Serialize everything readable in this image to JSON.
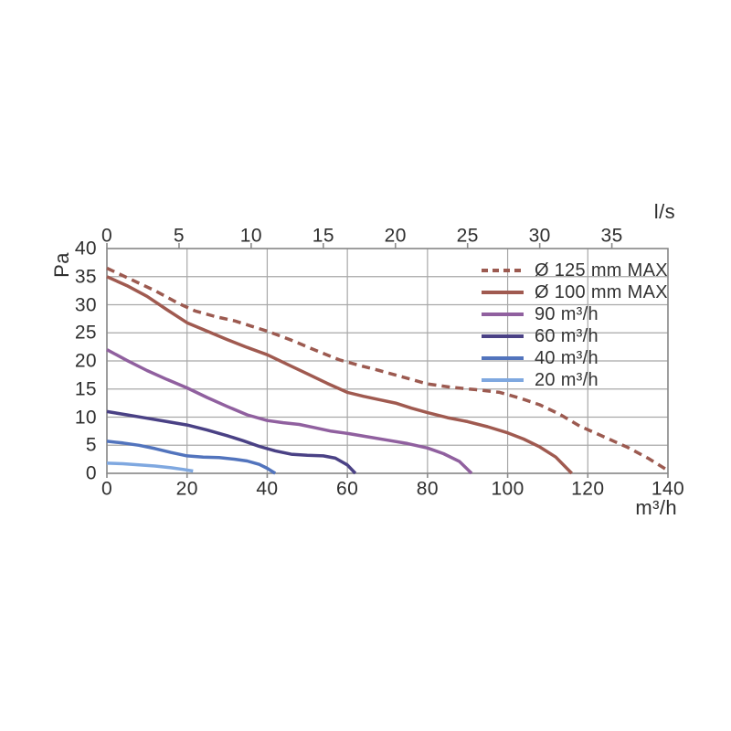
{
  "chart_data": {
    "type": "line",
    "title": "",
    "grid": true,
    "legend_position": "inside-top-right",
    "x_bottom": {
      "label": "m³/h",
      "ticks": [
        0,
        20,
        40,
        60,
        80,
        100,
        120,
        140
      ],
      "range": [
        0,
        140
      ]
    },
    "x_top": {
      "label": "l/s",
      "ticks": [
        0,
        5,
        10,
        15,
        20,
        25,
        30,
        35
      ],
      "range": [
        0,
        38.89
      ]
    },
    "y": {
      "label": "Pa",
      "ticks": [
        0,
        5,
        10,
        15,
        20,
        25,
        30,
        35,
        40
      ],
      "range": [
        0,
        40
      ]
    },
    "series": [
      {
        "name": "Ø 125 mm MAX",
        "style": "dashed",
        "color": "#9c5a50",
        "points": [
          [
            0,
            36.5
          ],
          [
            6,
            34.5
          ],
          [
            12,
            32.5
          ],
          [
            18,
            30.2
          ],
          [
            22,
            28.9
          ],
          [
            27,
            27.9
          ],
          [
            32,
            27.1
          ],
          [
            36,
            26.2
          ],
          [
            40,
            25.3
          ],
          [
            46,
            23.7
          ],
          [
            52,
            21.9
          ],
          [
            58,
            20.2
          ],
          [
            63,
            19.2
          ],
          [
            68,
            18.3
          ],
          [
            74,
            17.1
          ],
          [
            80,
            15.9
          ],
          [
            86,
            15.3
          ],
          [
            92,
            14.9
          ],
          [
            98,
            14.4
          ],
          [
            103,
            13.4
          ],
          [
            108,
            12.2
          ],
          [
            113,
            10.5
          ],
          [
            118,
            8.4
          ],
          [
            124,
            6.5
          ],
          [
            130,
            4.6
          ],
          [
            135,
            2.7
          ],
          [
            140,
            0.5
          ]
        ]
      },
      {
        "name": "Ø 100 mm MAX",
        "style": "solid",
        "color": "#a05a50",
        "points": [
          [
            0,
            35
          ],
          [
            5,
            33.4
          ],
          [
            10,
            31.5
          ],
          [
            15,
            29.1
          ],
          [
            20,
            26.8
          ],
          [
            25,
            25.3
          ],
          [
            30,
            23.8
          ],
          [
            35,
            22.4
          ],
          [
            40,
            21.1
          ],
          [
            45,
            19.4
          ],
          [
            50,
            17.7
          ],
          [
            55,
            16.0
          ],
          [
            60,
            14.4
          ],
          [
            64,
            13.7
          ],
          [
            68,
            13.1
          ],
          [
            72,
            12.5
          ],
          [
            76,
            11.6
          ],
          [
            80,
            10.8
          ],
          [
            85,
            9.9
          ],
          [
            90,
            9.2
          ],
          [
            95,
            8.3
          ],
          [
            100,
            7.2
          ],
          [
            104,
            6.1
          ],
          [
            108,
            4.7
          ],
          [
            112,
            2.9
          ],
          [
            116,
            0
          ]
        ]
      },
      {
        "name": "90 m³/h",
        "style": "solid",
        "color": "#90609f",
        "points": [
          [
            0,
            22
          ],
          [
            5,
            20.1
          ],
          [
            10,
            18.3
          ],
          [
            15,
            16.7
          ],
          [
            20,
            15.2
          ],
          [
            25,
            13.5
          ],
          [
            30,
            11.9
          ],
          [
            35,
            10.4
          ],
          [
            40,
            9.4
          ],
          [
            44,
            9.0
          ],
          [
            48,
            8.7
          ],
          [
            52,
            8.1
          ],
          [
            56,
            7.5
          ],
          [
            60,
            7.1
          ],
          [
            65,
            6.5
          ],
          [
            70,
            5.9
          ],
          [
            75,
            5.3
          ],
          [
            80,
            4.5
          ],
          [
            84,
            3.5
          ],
          [
            88,
            2.1
          ],
          [
            91,
            0
          ]
        ]
      },
      {
        "name": "60 m³/h",
        "style": "solid",
        "color": "#4a4185",
        "points": [
          [
            0,
            11
          ],
          [
            5,
            10.4
          ],
          [
            10,
            9.8
          ],
          [
            15,
            9.2
          ],
          [
            20,
            8.6
          ],
          [
            25,
            7.7
          ],
          [
            30,
            6.7
          ],
          [
            34,
            5.8
          ],
          [
            38,
            4.8
          ],
          [
            42,
            4.0
          ],
          [
            46,
            3.4
          ],
          [
            50,
            3.2
          ],
          [
            54,
            3.1
          ],
          [
            57,
            2.7
          ],
          [
            60,
            1.5
          ],
          [
            62,
            0
          ]
        ]
      },
      {
        "name": "40 m³/h",
        "style": "solid",
        "color": "#5274bd",
        "points": [
          [
            0,
            5.7
          ],
          [
            4,
            5.4
          ],
          [
            8,
            5.0
          ],
          [
            12,
            4.4
          ],
          [
            16,
            3.7
          ],
          [
            20,
            3.1
          ],
          [
            24,
            2.9
          ],
          [
            28,
            2.8
          ],
          [
            32,
            2.5
          ],
          [
            35,
            2.2
          ],
          [
            38,
            1.6
          ],
          [
            40,
            0.9
          ],
          [
            42,
            0
          ]
        ]
      },
      {
        "name": "20 m³/h",
        "style": "solid",
        "color": "#7fa8e0",
        "points": [
          [
            0,
            1.8
          ],
          [
            4,
            1.7
          ],
          [
            8,
            1.5
          ],
          [
            12,
            1.3
          ],
          [
            16,
            1.0
          ],
          [
            19,
            0.7
          ],
          [
            21.5,
            0.4
          ]
        ]
      }
    ]
  },
  "colors": {
    "grid": "#a8a8a8",
    "frame": "#8b8b8b",
    "text": "#2f2f2f",
    "background": "#ffffff"
  }
}
